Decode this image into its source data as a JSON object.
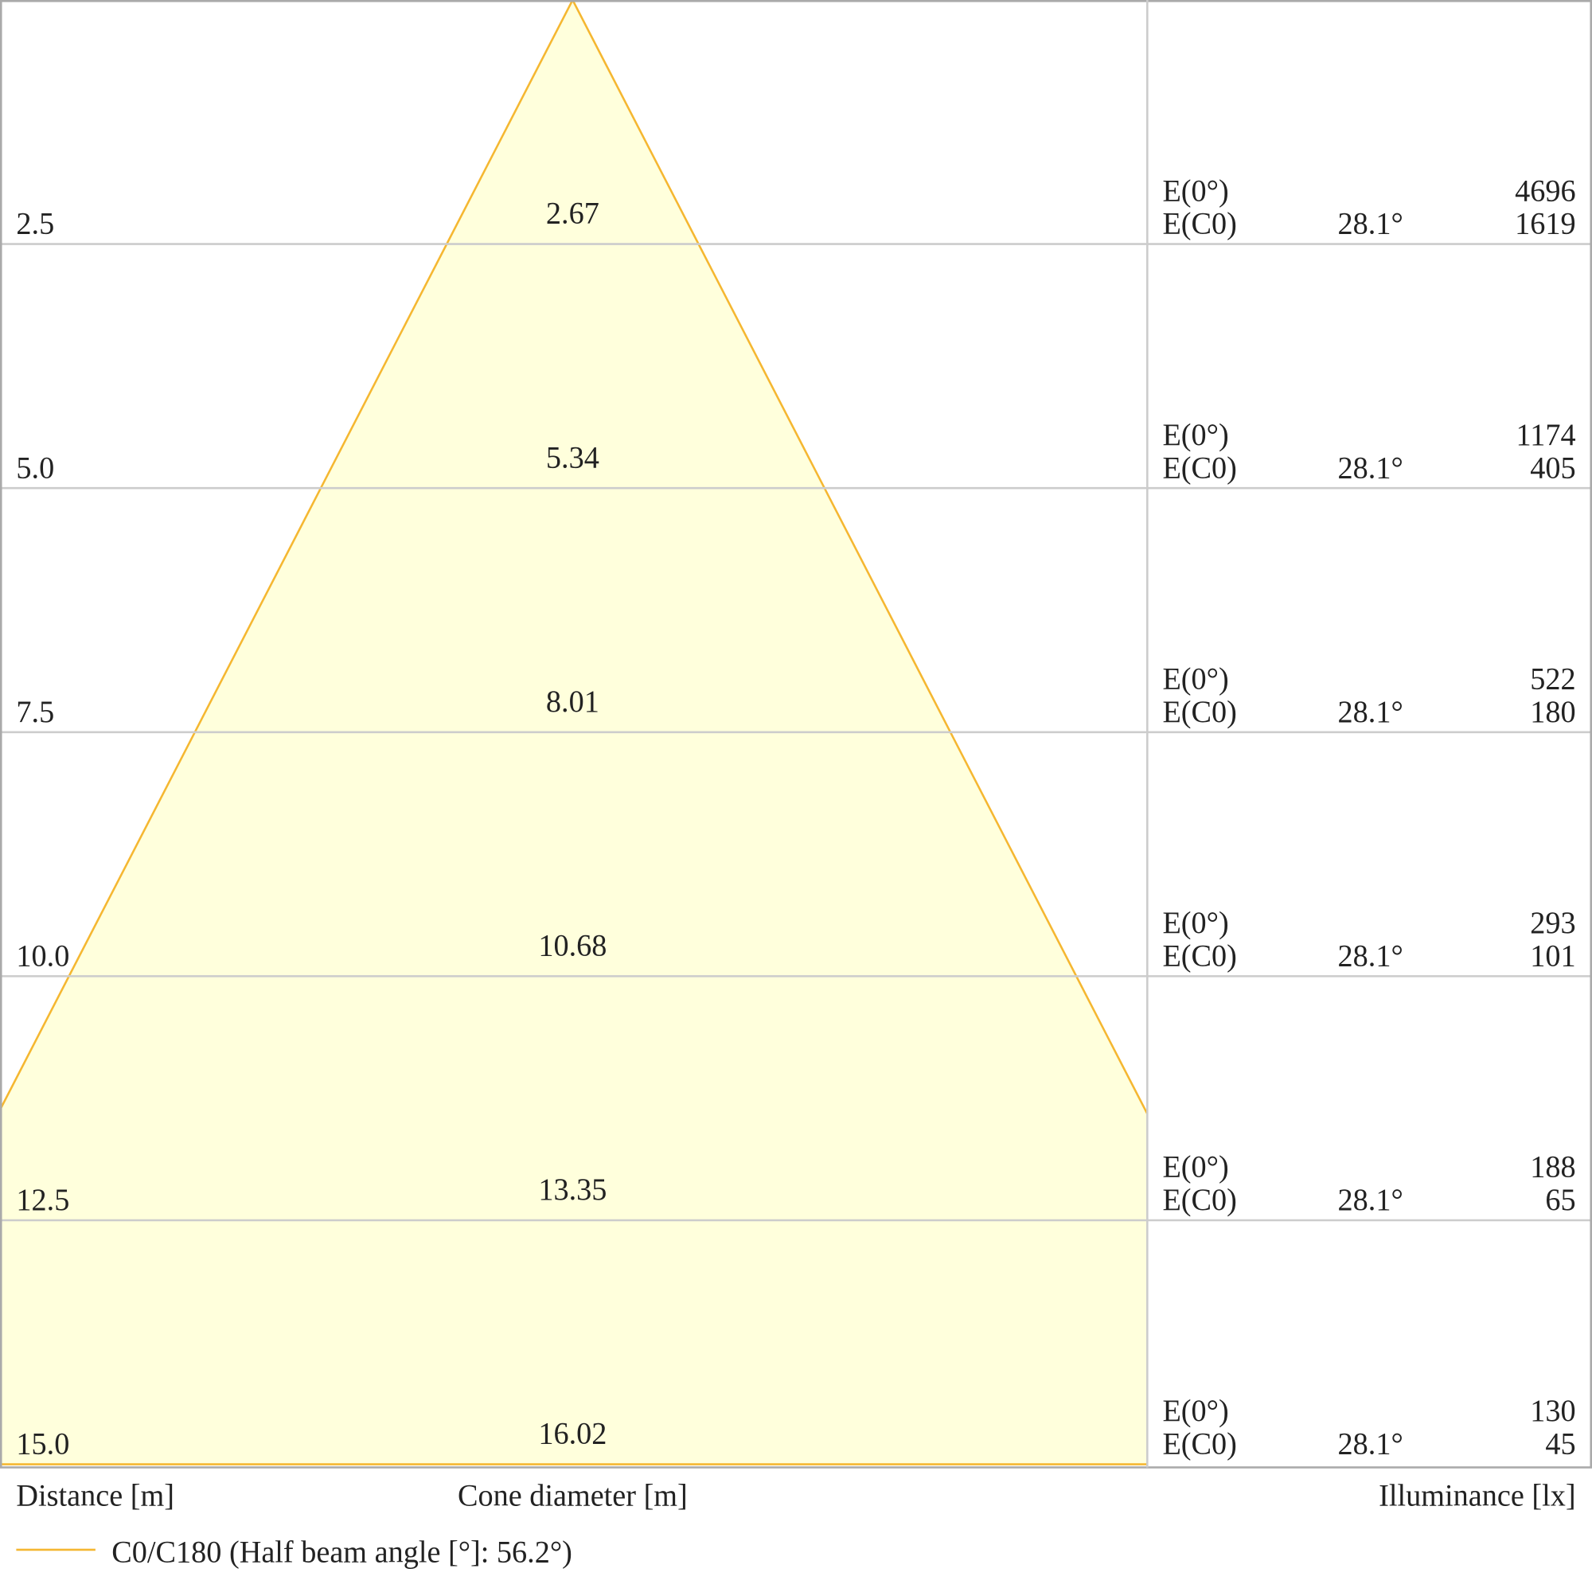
{
  "rows": [
    {
      "distance": "2.5",
      "diameter": 2.67,
      "e0_label": "E(0°)",
      "ec0_label": "E(C0)",
      "angle": "28.1°",
      "e0": 4696,
      "ec0": 1619
    },
    {
      "distance": "5.0",
      "diameter": 5.34,
      "e0_label": "E(0°)",
      "ec0_label": "E(C0)",
      "angle": "28.1°",
      "e0": 1174,
      "ec0": 405
    },
    {
      "distance": "7.5",
      "diameter": 8.01,
      "e0_label": "E(0°)",
      "ec0_label": "E(C0)",
      "angle": "28.1°",
      "e0": 522,
      "ec0": 180
    },
    {
      "distance": "10.0",
      "diameter": 10.68,
      "e0_label": "E(0°)",
      "ec0_label": "E(C0)",
      "angle": "28.1°",
      "e0": 293,
      "ec0": 101
    },
    {
      "distance": "12.5",
      "diameter": 13.35,
      "e0_label": "E(0°)",
      "ec0_label": "E(C0)",
      "angle": "28.1°",
      "e0": 188,
      "ec0": 65
    },
    {
      "distance": "15.0",
      "diameter": 16.02,
      "e0_label": "E(0°)",
      "ec0_label": "E(C0)",
      "angle": "28.1°",
      "e0": 130,
      "ec0": 45
    }
  ],
  "footer": {
    "distance": "Distance [m]",
    "diameter": "Cone diameter [m]",
    "illuminance": "Illuminance [lx]"
  },
  "legend": {
    "label": "C0/C180 (Half beam angle [°]: 56.2°)"
  }
}
